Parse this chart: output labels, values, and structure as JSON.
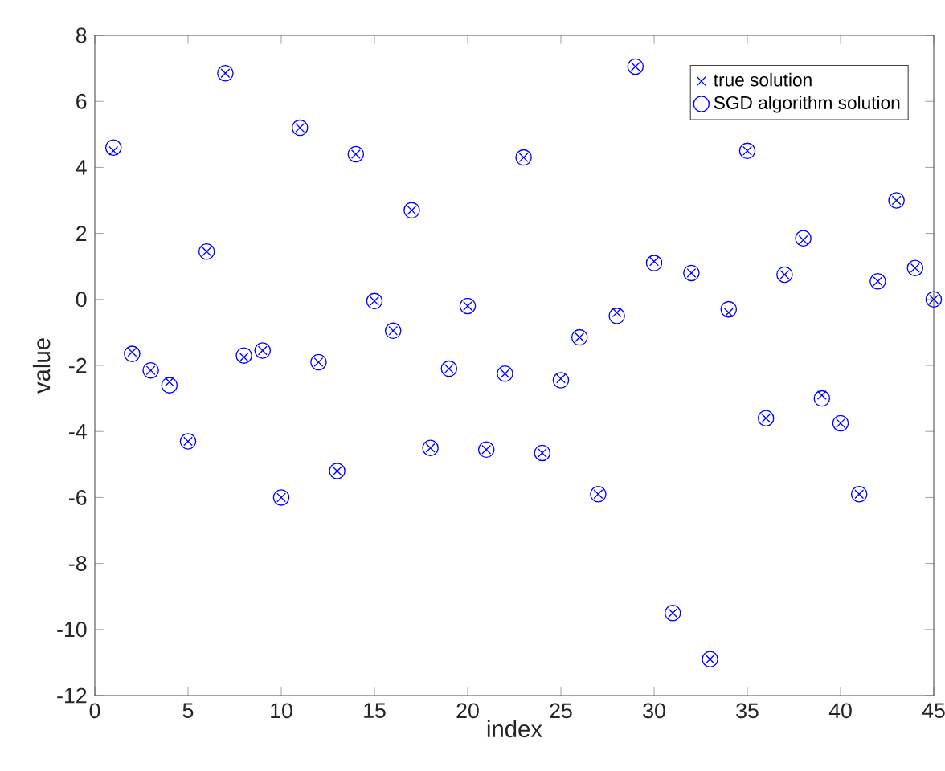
{
  "chart_data": {
    "type": "scatter",
    "xlabel": "index",
    "ylabel": "value",
    "x": [
      1,
      2,
      3,
      4,
      5,
      6,
      7,
      8,
      9,
      10,
      11,
      12,
      13,
      14,
      15,
      16,
      17,
      18,
      19,
      20,
      21,
      22,
      23,
      24,
      25,
      26,
      27,
      28,
      29,
      30,
      31,
      32,
      33,
      34,
      35,
      36,
      37,
      38,
      39,
      40,
      41,
      42,
      43,
      44,
      45
    ],
    "series": [
      {
        "name": "true solution",
        "color": "#0000ff",
        "marker": "cross",
        "values": [
          4.5,
          -1.6,
          -2.15,
          -2.5,
          -4.3,
          1.45,
          6.85,
          -1.75,
          -1.55,
          -6.0,
          5.2,
          -1.9,
          -5.2,
          4.4,
          -0.05,
          -0.95,
          2.7,
          -4.5,
          -2.1,
          -0.2,
          -4.55,
          -2.25,
          4.3,
          -4.65,
          -2.4,
          -1.15,
          -5.9,
          -0.4,
          7.05,
          1.15,
          -9.5,
          0.8,
          -10.9,
          -0.4,
          4.5,
          -3.6,
          0.75,
          1.8,
          -2.9,
          -3.75,
          -5.9,
          0.55,
          3.0,
          0.95,
          0.0
        ]
      },
      {
        "name": "SGD algorithm solution",
        "color": "#0000ff",
        "marker": "circle",
        "values": [
          4.6,
          -1.65,
          -2.15,
          -2.6,
          -4.3,
          1.45,
          6.85,
          -1.7,
          -1.55,
          -6.0,
          5.2,
          -1.9,
          -5.2,
          4.4,
          -0.05,
          -0.95,
          2.7,
          -4.5,
          -2.1,
          -0.2,
          -4.55,
          -2.25,
          4.3,
          -4.65,
          -2.45,
          -1.15,
          -5.9,
          -0.5,
          7.05,
          1.1,
          -9.5,
          0.8,
          -10.9,
          -0.3,
          4.5,
          -3.6,
          0.75,
          1.85,
          -3.0,
          -3.75,
          -5.9,
          0.55,
          3.0,
          0.95,
          0.0
        ]
      }
    ],
    "xlim": [
      0,
      45
    ],
    "xticks": [
      0,
      5,
      10,
      15,
      20,
      25,
      30,
      35,
      40,
      45
    ],
    "ylim": [
      -12,
      8
    ],
    "yticks": [
      -12,
      -10,
      -8,
      -6,
      -4,
      -2,
      0,
      2,
      4,
      6,
      8
    ],
    "legend": "top right",
    "grid": false
  }
}
